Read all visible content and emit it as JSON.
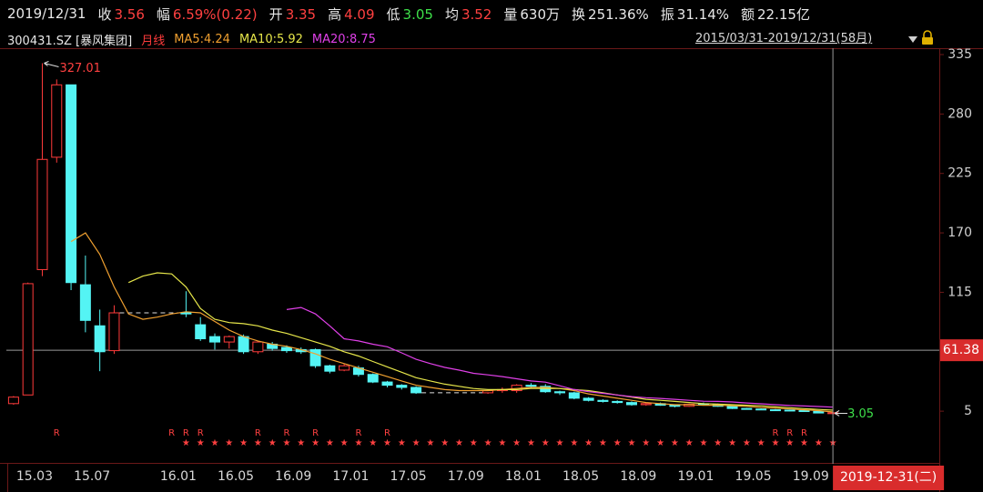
{
  "header": {
    "date": "2019/12/31",
    "stats": [
      {
        "label": "收",
        "value": "3.56",
        "color": "#ff4040"
      },
      {
        "label": "幅",
        "value": "6.59%(0.22)",
        "color": "#ff4040"
      },
      {
        "label": "开",
        "value": "3.35",
        "color": "#ff4040"
      },
      {
        "label": "高",
        "value": "4.09",
        "color": "#ff4040"
      },
      {
        "label": "低",
        "value": "3.05",
        "color": "#3ee04a"
      },
      {
        "label": "均",
        "value": "3.52",
        "color": "#ff4040"
      },
      {
        "label": "量",
        "value": "630万",
        "color": "#e8e8e8"
      },
      {
        "label": "换",
        "value": "251.36%",
        "color": "#e8e8e8"
      },
      {
        "label": "振",
        "value": "31.14%",
        "color": "#e8e8e8"
      },
      {
        "label": "额",
        "value": "22.15亿",
        "color": "#e8e8e8"
      }
    ],
    "symbol": "300431.SZ [暴风集团]",
    "range": "2015/03/31-2019/12/31(58月)"
  },
  "chart_data": {
    "type": "candlestick",
    "categories": [
      "15.03",
      null,
      null,
      null,
      "15.07",
      null,
      null,
      null,
      null,
      null,
      "16.01",
      null,
      null,
      null,
      "16.05",
      null,
      null,
      null,
      "16.09",
      null,
      null,
      null,
      "17.01",
      null,
      null,
      null,
      "17.05",
      null,
      null,
      null,
      "17.09",
      null,
      null,
      null,
      "18.01",
      null,
      null,
      null,
      "18.05",
      null,
      null,
      null,
      "18.09",
      null,
      null,
      null,
      "19.01",
      null,
      null,
      null,
      "19.05",
      null,
      null,
      null,
      "19.09",
      null,
      null,
      null
    ],
    "series": [
      {
        "name": "月线",
        "color": "#ff3b3b",
        "down_color": "#54f4f4",
        "open": [
          12,
          20,
          136,
          240,
          307,
          122,
          84,
          61,
          null,
          null,
          null,
          null,
          96,
          85,
          74,
          69,
          74,
          60,
          67,
          64,
          62,
          62,
          47,
          43,
          45,
          39,
          32,
          29,
          27,
          null,
          null,
          null,
          null,
          22,
          24,
          24,
          29,
          28,
          23,
          22,
          17,
          15,
          14,
          13,
          11,
          12,
          10.5,
          9.5,
          11.5,
          11,
          9.5,
          7.5,
          7,
          6.3,
          6,
          5.5,
          4.8,
          3.35
        ],
        "high": [
          19,
          124,
          327.01,
          312,
          307,
          149,
          99,
          103,
          null,
          null,
          null,
          null,
          116,
          92,
          77,
          75,
          76,
          70,
          69,
          66,
          64,
          63,
          48,
          49,
          47,
          40,
          33,
          30,
          28,
          null,
          null,
          null,
          null,
          25,
          27,
          30,
          31,
          30,
          24,
          23,
          18,
          16,
          15,
          14,
          13,
          13,
          11,
          12,
          13,
          12,
          10,
          8,
          7.5,
          7,
          6.5,
          6,
          5,
          4.09
        ],
        "low": [
          11,
          20,
          130,
          235,
          117,
          78,
          42,
          58,
          null,
          null,
          null,
          null,
          92,
          70,
          62,
          63,
          58,
          58,
          61,
          59,
          58,
          45,
          40,
          42,
          37,
          31,
          27,
          25,
          21,
          null,
          null,
          null,
          null,
          21,
          22,
          22,
          26,
          22,
          20,
          16,
          14,
          13,
          12,
          10,
          10,
          10,
          8.5,
          9,
          10.5,
          9,
          7,
          6.5,
          6,
          5.5,
          5,
          4.6,
          3.3,
          3.05
        ],
        "close": [
          18,
          123,
          238,
          307,
          124,
          89,
          60,
          96,
          null,
          null,
          null,
          null,
          95,
          72,
          69,
          74,
          60,
          69,
          63,
          61,
          60,
          47,
          42,
          47,
          39,
          32,
          29,
          27,
          22,
          null,
          null,
          null,
          null,
          24,
          25,
          29,
          28,
          23,
          22,
          17,
          15,
          14,
          13,
          11,
          12,
          10.5,
          9.5,
          11.5,
          11,
          9.5,
          7.5,
          7,
          6.3,
          6,
          5.5,
          4.8,
          3.34,
          3.56
        ]
      }
    ],
    "overlays": [
      {
        "name": "MA5:4.24",
        "color": "#f0a030",
        "values": [
          null,
          null,
          null,
          null,
          162,
          170,
          150,
          120,
          95,
          90,
          92,
          95,
          97,
          96,
          88,
          80,
          74,
          70,
          67,
          65,
          62,
          58,
          53,
          49,
          45,
          41,
          37,
          33,
          29,
          27,
          25,
          24,
          24,
          24,
          25,
          26,
          27,
          27,
          26,
          24,
          21,
          19,
          17,
          15,
          13,
          12,
          11,
          11,
          10.5,
          10.5,
          10,
          9.5,
          8.5,
          7.8,
          7,
          6.3,
          5.5,
          4.24
        ]
      },
      {
        "name": "MA10:5.92",
        "color": "#e6e64a",
        "values": [
          null,
          null,
          null,
          null,
          null,
          null,
          null,
          null,
          124,
          130,
          133,
          132,
          120,
          100,
          90,
          87,
          86,
          84,
          80,
          77,
          73,
          69,
          65,
          60,
          56,
          51,
          46,
          41,
          36,
          33,
          30,
          28,
          26,
          25,
          25,
          25,
          26,
          26,
          26,
          25,
          24,
          22,
          20,
          18,
          16,
          15,
          14,
          13,
          12,
          11.5,
          11,
          10.5,
          10,
          9,
          8.2,
          7.4,
          6.6,
          5.92
        ]
      },
      {
        "name": "MA20:8.75",
        "color": "#e040e8",
        "values": [
          null,
          null,
          null,
          null,
          null,
          null,
          null,
          null,
          null,
          null,
          null,
          null,
          null,
          null,
          null,
          null,
          null,
          null,
          null,
          99,
          101,
          95,
          84,
          72,
          70,
          67,
          64.6,
          59,
          53,
          49,
          45.5,
          43,
          40,
          38.6,
          37,
          35,
          33,
          31.9,
          28.5,
          25,
          23,
          21.5,
          20,
          18.5,
          17.5,
          16.8,
          16,
          15,
          14.2,
          14,
          13.5,
          12.6,
          11.8,
          11,
          10.2,
          9.8,
          9.3,
          8.75
        ]
      }
    ],
    "ylim": [
      -39.5,
      340.9
    ],
    "yticks": [
      5,
      60,
      115,
      170,
      225,
      280,
      335
    ],
    "r_flags": [
      null,
      null,
      null,
      "R",
      null,
      null,
      null,
      null,
      null,
      null,
      null,
      "R",
      "R",
      "R",
      null,
      null,
      null,
      "R",
      null,
      "R",
      null,
      "R",
      null,
      null,
      "R",
      null,
      "R",
      null,
      null,
      null,
      null,
      null,
      null,
      null,
      null,
      null,
      null,
      null,
      null,
      null,
      null,
      null,
      null,
      null,
      null,
      null,
      null,
      null,
      null,
      null,
      null,
      null,
      null,
      "R",
      "R",
      "R",
      null,
      null
    ],
    "star_flags": [
      null,
      null,
      null,
      null,
      null,
      null,
      null,
      null,
      null,
      null,
      null,
      null,
      "★",
      "★",
      "★",
      "★",
      "★",
      "★",
      "★",
      "★",
      "★",
      "★",
      "★",
      "★",
      "★",
      "★",
      "★",
      "★",
      "★",
      "★",
      "★",
      "★",
      "★",
      "★",
      "★",
      "★",
      "★",
      "★",
      "★",
      "★",
      "★",
      "★",
      "★",
      "★",
      "★",
      "★",
      "★",
      "★",
      "★",
      "★",
      "★",
      "★",
      "★",
      "★",
      "★",
      "★",
      "★",
      "★"
    ],
    "crosshair": {
      "value": 61.38,
      "date": "2019-12-31(二)"
    }
  }
}
